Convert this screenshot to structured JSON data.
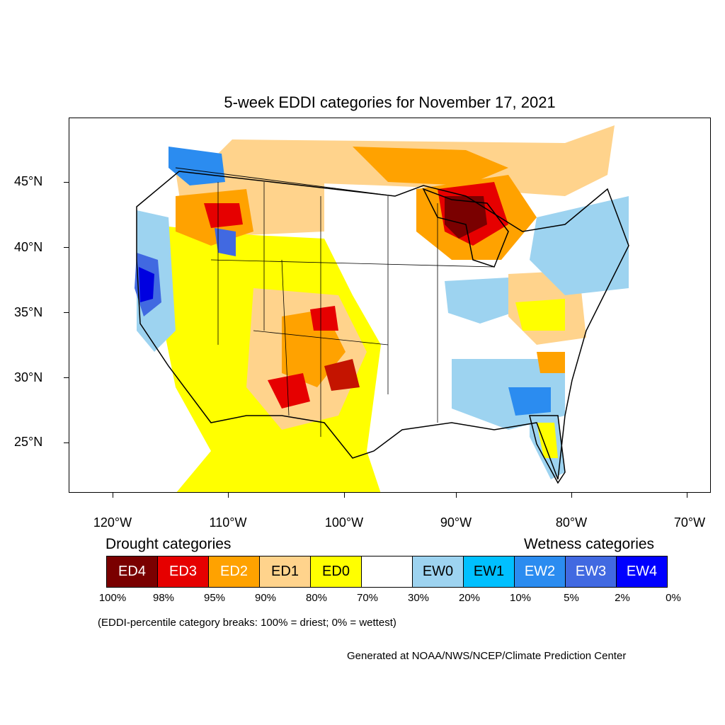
{
  "title": "5-week EDDI categories for November 17, 2021",
  "lat_labels": [
    "45°N",
    "40°N",
    "35°N",
    "30°N",
    "25°N"
  ],
  "lon_labels": [
    "120°W",
    "110°W",
    "100°W",
    "90°W",
    "80°W",
    "70°W"
  ],
  "legend": {
    "drought_heading": "Drought categories",
    "wetness_heading": "Wetness categories",
    "categories": [
      {
        "label": "ED4",
        "color": "#7a0000",
        "text_color": "#ffffff"
      },
      {
        "label": "ED3",
        "color": "#e60000",
        "text_color": "#ffffff"
      },
      {
        "label": "ED2",
        "color": "#ffa200",
        "text_color": "#ffffff"
      },
      {
        "label": "ED1",
        "color": "#ffd38c",
        "text_color": "#000000"
      },
      {
        "label": "ED0",
        "color": "#ffff00",
        "text_color": "#000000"
      },
      {
        "label": "",
        "color": "#ffffff",
        "text_color": "#000000"
      },
      {
        "label": "EW0",
        "color": "#9dd3f0",
        "text_color": "#000000"
      },
      {
        "label": "EW1",
        "color": "#00c0ff",
        "text_color": "#000000"
      },
      {
        "label": "EW2",
        "color": "#2b8cf0",
        "text_color": "#ffffff"
      },
      {
        "label": "EW3",
        "color": "#4169e1",
        "text_color": "#ffffff"
      },
      {
        "label": "EW4",
        "color": "#0000ff",
        "text_color": "#ffffff"
      }
    ],
    "percentiles": [
      "100%",
      "98%",
      "95%",
      "90%",
      "80%",
      "70%",
      "30%",
      "20%",
      "10%",
      "5%",
      "2%",
      "0%"
    ]
  },
  "note": "(EDDI-percentile category breaks: 100% = driest; 0% = wettest)",
  "credit": "Generated at NOAA/NWS/NCEP/Climate Prediction Center"
}
